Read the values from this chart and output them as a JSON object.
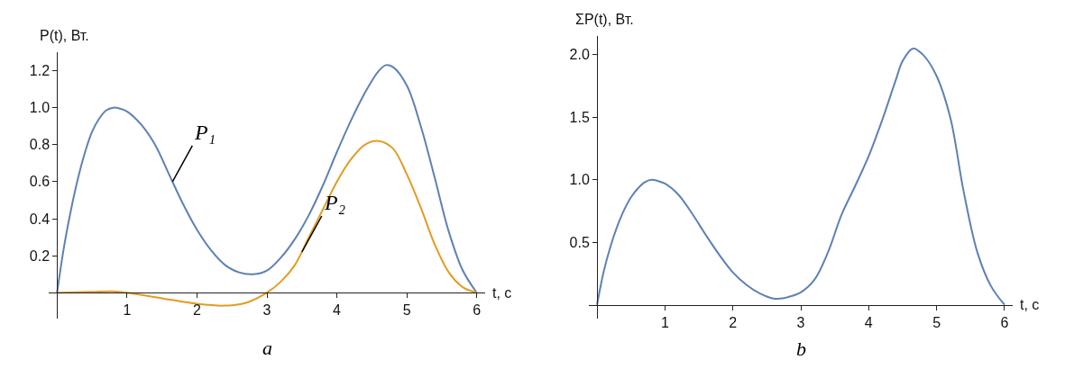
{
  "chart_data": [
    {
      "type": "line",
      "xlabel": "t, c",
      "ylabel": "P(t), Вт.",
      "annotations": [
        {
          "text": "P₁",
          "x": 1.65,
          "y": 0.6
        },
        {
          "text": "P₂",
          "x": 3.5,
          "y": 0.22
        },
        "a"
      ],
      "xlim": [
        -0.12,
        6.12
      ],
      "ylim": [
        -0.14,
        1.3
      ],
      "xticks": [
        1,
        2,
        3,
        4,
        5,
        6
      ],
      "yticks": [
        {
          "value": 0.2,
          "label": "0.2"
        },
        {
          "value": 0.4,
          "label": "0.4"
        },
        {
          "value": 0.6,
          "label": "0.6"
        },
        {
          "value": 0.8,
          "label": "0.8"
        },
        {
          "value": 1.0,
          "label": "1.0"
        },
        {
          "value": 1.2,
          "label": "1.2"
        }
      ],
      "grid": false,
      "marker": "none",
      "line_style": "solid",
      "series": [
        {
          "color": "#5e81b5",
          "x": [
            0,
            0.1,
            0.2,
            0.3,
            0.4,
            0.5,
            0.6,
            0.7,
            0.8,
            0.9,
            1.0,
            1.2,
            1.4,
            1.6,
            1.8,
            2.0,
            2.2,
            2.4,
            2.6,
            2.8,
            3.0,
            3.2,
            3.4,
            3.6,
            3.8,
            4.0,
            4.2,
            4.4,
            4.6,
            4.7,
            4.8,
            5.0,
            5.2,
            5.4,
            5.6,
            5.8,
            6.0
          ],
          "values": [
            0,
            0.25,
            0.45,
            0.62,
            0.76,
            0.87,
            0.94,
            0.985,
            1.0,
            0.995,
            0.98,
            0.91,
            0.8,
            0.64,
            0.48,
            0.34,
            0.23,
            0.15,
            0.11,
            0.1,
            0.12,
            0.19,
            0.29,
            0.42,
            0.58,
            0.76,
            0.93,
            1.08,
            1.2,
            1.23,
            1.22,
            1.12,
            0.9,
            0.62,
            0.33,
            0.12,
            0
          ]
        },
        {
          "color": "#e19c24",
          "x": [
            0,
            0.5,
            0.8,
            1.0,
            1.5,
            2.0,
            2.4,
            2.7,
            3.0,
            3.2,
            3.4,
            3.6,
            3.8,
            4.0,
            4.2,
            4.4,
            4.6,
            4.8,
            5.0,
            5.2,
            5.4,
            5.6,
            5.8,
            6.0
          ],
          "values": [
            0,
            0.005,
            0.007,
            0.0,
            -0.03,
            -0.06,
            -0.07,
            -0.055,
            0.0,
            0.06,
            0.15,
            0.3,
            0.45,
            0.6,
            0.72,
            0.8,
            0.82,
            0.78,
            0.64,
            0.46,
            0.26,
            0.11,
            0.03,
            0
          ]
        }
      ]
    },
    {
      "type": "line",
      "xlabel": "t, c",
      "ylabel": "ΣP(t), Вт.",
      "annotations": [
        "b"
      ],
      "xlim": [
        -0.12,
        6.12
      ],
      "ylim": [
        -0.11,
        2.15
      ],
      "xticks": [
        1,
        2,
        3,
        4,
        5,
        6
      ],
      "yticks": [
        {
          "value": 0.5,
          "label": "0.5"
        },
        {
          "value": 1.0,
          "label": "1.0"
        },
        {
          "value": 1.5,
          "label": "1.5"
        },
        {
          "value": 2.0,
          "label": "2.0"
        }
      ],
      "grid": false,
      "marker": "none",
      "line_style": "solid",
      "series": [
        {
          "color": "#5e81b5",
          "x": [
            0,
            0.1,
            0.2,
            0.3,
            0.4,
            0.5,
            0.6,
            0.7,
            0.8,
            0.9,
            1.0,
            1.2,
            1.4,
            1.6,
            1.8,
            2.0,
            2.2,
            2.4,
            2.6,
            2.7,
            2.8,
            3.0,
            3.2,
            3.4,
            3.6,
            3.8,
            4.0,
            4.2,
            4.4,
            4.5,
            4.65,
            4.8,
            5.0,
            5.2,
            5.4,
            5.6,
            5.8,
            6.0
          ],
          "values": [
            0,
            0.27,
            0.47,
            0.63,
            0.76,
            0.86,
            0.93,
            0.98,
            1.0,
            0.99,
            0.97,
            0.88,
            0.73,
            0.56,
            0.4,
            0.26,
            0.16,
            0.09,
            0.05,
            0.05,
            0.06,
            0.1,
            0.2,
            0.42,
            0.72,
            0.95,
            1.19,
            1.48,
            1.8,
            1.95,
            2.05,
            2.0,
            1.83,
            1.5,
            0.9,
            0.42,
            0.15,
            0
          ]
        }
      ]
    }
  ]
}
